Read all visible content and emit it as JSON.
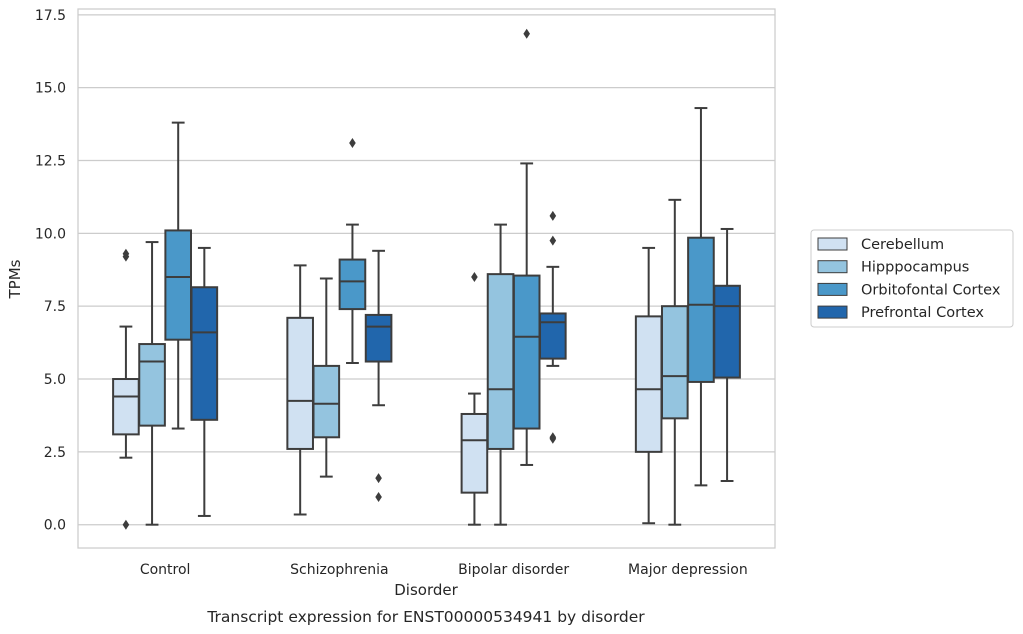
{
  "chart_data": {
    "type": "box",
    "title": "",
    "caption": "Transcript expression for ENST00000534941 by disorder",
    "xlabel": "Disorder",
    "ylabel": "TPMs",
    "ylim": [
      -0.8,
      17.7
    ],
    "yticks": [
      0.0,
      2.5,
      5.0,
      7.5,
      10.0,
      12.5,
      15.0,
      17.5
    ],
    "ytick_labels": [
      "0.0",
      "2.5",
      "5.0",
      "7.5",
      "10.0",
      "12.5",
      "15.0",
      "17.5"
    ],
    "grid": "horizontal",
    "legend_position": "right",
    "categories": [
      "Control",
      "Schizophrenia",
      "Bipolar disorder",
      "Major depression"
    ],
    "series": [
      {
        "name": "Cerebellum",
        "color": "#d0e1f2",
        "boxes": [
          {
            "whislo": 2.3,
            "q1": 3.1,
            "med": 4.4,
            "q3": 5.0,
            "whishi": 6.8,
            "fliers": [
              0.0,
              9.2,
              9.3
            ]
          },
          {
            "whislo": 0.35,
            "q1": 2.6,
            "med": 4.25,
            "q3": 7.1,
            "whishi": 8.9,
            "fliers": []
          },
          {
            "whislo": 0.0,
            "q1": 1.1,
            "med": 2.9,
            "q3": 3.8,
            "whishi": 4.5,
            "fliers": [
              8.5
            ]
          },
          {
            "whislo": 0.05,
            "q1": 2.5,
            "med": 4.65,
            "q3": 7.15,
            "whishi": 9.5,
            "fliers": []
          }
        ]
      },
      {
        "name": "Hipppocampus",
        "color": "#94c4df",
        "boxes": [
          {
            "whislo": 0.0,
            "q1": 3.4,
            "med": 5.6,
            "q3": 6.2,
            "whishi": 9.7,
            "fliers": []
          },
          {
            "whislo": 1.65,
            "q1": 3.0,
            "med": 4.15,
            "q3": 5.45,
            "whishi": 8.45,
            "fliers": []
          },
          {
            "whislo": 0.0,
            "q1": 2.6,
            "med": 4.65,
            "q3": 8.6,
            "whishi": 10.3,
            "fliers": []
          },
          {
            "whislo": 0.0,
            "q1": 3.65,
            "med": 5.1,
            "q3": 7.5,
            "whishi": 11.15,
            "fliers": []
          }
        ]
      },
      {
        "name": "Orbitofontal Cortex",
        "color": "#4a98c9",
        "boxes": [
          {
            "whislo": 3.3,
            "q1": 6.35,
            "med": 8.5,
            "q3": 10.1,
            "whishi": 13.8,
            "fliers": []
          },
          {
            "whislo": 5.55,
            "q1": 7.4,
            "med": 8.35,
            "q3": 9.1,
            "whishi": 10.3,
            "fliers": [
              13.1
            ]
          },
          {
            "whislo": 2.05,
            "q1": 3.3,
            "med": 6.45,
            "q3": 8.55,
            "whishi": 12.4,
            "fliers": [
              16.85
            ]
          },
          {
            "whislo": 1.35,
            "q1": 4.9,
            "med": 7.55,
            "q3": 9.85,
            "whishi": 14.3,
            "fliers": []
          }
        ]
      },
      {
        "name": "Prefrontal Cortex",
        "color": "#2166ac",
        "boxes": [
          {
            "whislo": 0.3,
            "q1": 3.6,
            "med": 6.6,
            "q3": 8.15,
            "whishi": 9.5,
            "fliers": []
          },
          {
            "whislo": 4.1,
            "q1": 5.6,
            "med": 6.8,
            "q3": 7.2,
            "whishi": 9.4,
            "fliers": [
              1.6,
              0.95
            ]
          },
          {
            "whislo": 5.45,
            "q1": 5.7,
            "med": 6.95,
            "q3": 7.25,
            "whishi": 8.85,
            "fliers": [
              10.6,
              9.75,
              2.95,
              3.0
            ]
          },
          {
            "whislo": 1.5,
            "q1": 5.05,
            "med": 7.5,
            "q3": 8.2,
            "whishi": 10.15,
            "fliers": []
          }
        ]
      }
    ]
  }
}
